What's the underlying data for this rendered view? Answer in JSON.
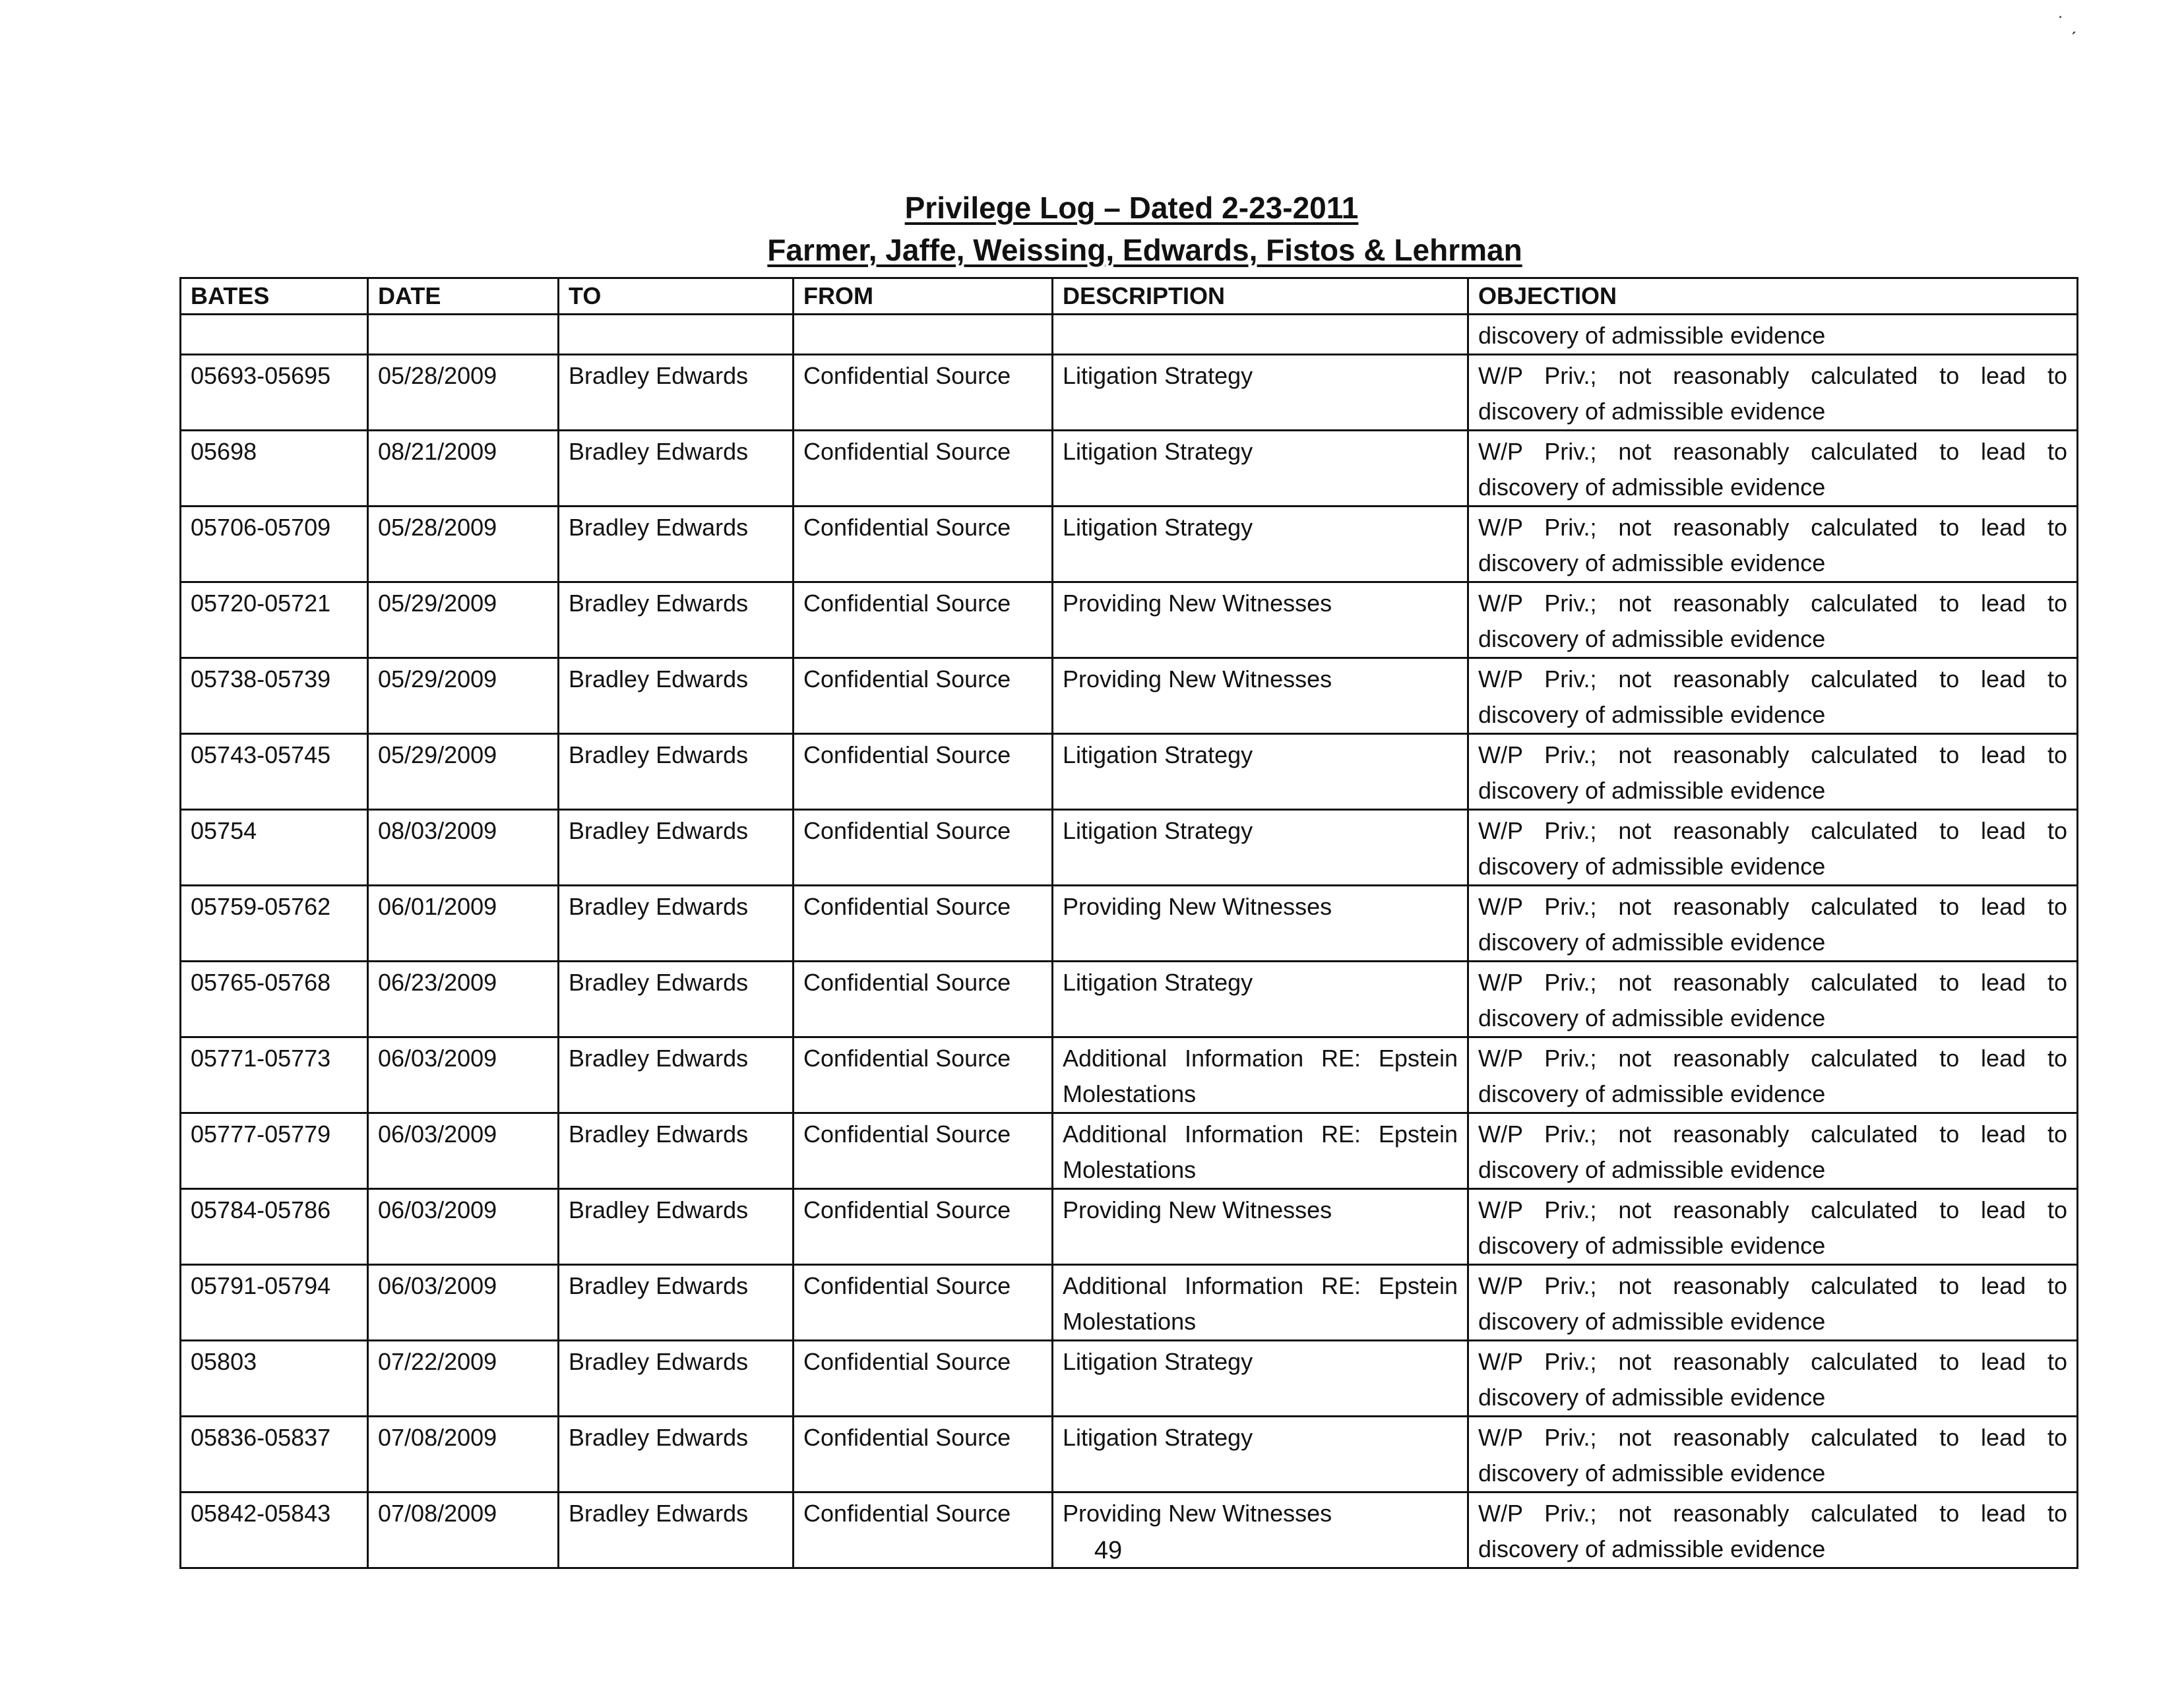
{
  "header": {
    "title": "Privilege Log – Dated 2-23-2011",
    "subtitle": "Farmer, Jaffe, Weissing, Edwards, Fistos & Lehrman"
  },
  "table": {
    "columns": [
      "BATES",
      "DATE",
      "TO",
      "FROM",
      "DESCRIPTION",
      "OBJECTION"
    ],
    "continuation": {
      "objection": "discovery of admissible evidence"
    },
    "rows": [
      {
        "bates": "05693-05695",
        "date": "05/28/2009",
        "to": "Bradley Edwards",
        "from": "Confidential Source",
        "description": "Litigation Strategy",
        "objection": "W/P Priv.; not reasonably calculated to lead to discovery of admissible evidence"
      },
      {
        "bates": "05698",
        "date": "08/21/2009",
        "to": "Bradley Edwards",
        "from": "Confidential Source",
        "description": "Litigation Strategy",
        "objection": "W/P Priv.; not reasonably calculated to lead to discovery of admissible evidence"
      },
      {
        "bates": "05706-05709",
        "date": "05/28/2009",
        "to": "Bradley Edwards",
        "from": "Confidential Source",
        "description": "Litigation Strategy",
        "objection": "W/P Priv.; not reasonably calculated to lead to discovery of admissible evidence"
      },
      {
        "bates": "05720-05721",
        "date": "05/29/2009",
        "to": "Bradley Edwards",
        "from": "Confidential Source",
        "description": "Providing New Witnesses",
        "objection": "W/P Priv.; not reasonably calculated to lead to discovery of admissible evidence"
      },
      {
        "bates": "05738-05739",
        "date": "05/29/2009",
        "to": "Bradley Edwards",
        "from": "Confidential Source",
        "description": "Providing New Witnesses",
        "objection": "W/P Priv.; not reasonably calculated to lead to discovery of admissible evidence"
      },
      {
        "bates": "05743-05745",
        "date": "05/29/2009",
        "to": "Bradley Edwards",
        "from": "Confidential Source",
        "description": "Litigation Strategy",
        "objection": "W/P Priv.; not reasonably calculated to lead to discovery of admissible evidence"
      },
      {
        "bates": "05754",
        "date": "08/03/2009",
        "to": "Bradley Edwards",
        "from": "Confidential Source",
        "description": "Litigation Strategy",
        "objection": "W/P Priv.; not reasonably calculated to lead to discovery of admissible evidence"
      },
      {
        "bates": "05759-05762",
        "date": "06/01/2009",
        "to": "Bradley Edwards",
        "from": "Confidential Source",
        "description": "Providing New Witnesses",
        "objection": "W/P Priv.; not reasonably calculated to lead to discovery of admissible evidence"
      },
      {
        "bates": "05765-05768",
        "date": "06/23/2009",
        "to": "Bradley Edwards",
        "from": "Confidential Source",
        "description": "Litigation Strategy",
        "objection": "W/P Priv.; not reasonably calculated to lead to discovery of admissible evidence"
      },
      {
        "bates": "05771-05773",
        "date": "06/03/2009",
        "to": "Bradley Edwards",
        "from": "Confidential Source",
        "description": "Additional Information RE: Epstein Molestations",
        "objection": "W/P Priv.; not reasonably calculated to lead to discovery of admissible evidence"
      },
      {
        "bates": "05777-05779",
        "date": "06/03/2009",
        "to": "Bradley Edwards",
        "from": "Confidential Source",
        "description": "Additional Information RE: Epstein Molestations",
        "objection": "W/P Priv.; not reasonably calculated to lead to discovery of admissible evidence"
      },
      {
        "bates": "05784-05786",
        "date": "06/03/2009",
        "to": "Bradley Edwards",
        "from": "Confidential Source",
        "description": "Providing New Witnesses",
        "objection": "W/P Priv.; not reasonably calculated to lead to discovery of admissible evidence"
      },
      {
        "bates": "05791-05794",
        "date": "06/03/2009",
        "to": "Bradley Edwards",
        "from": "Confidential Source",
        "description": "Additional Information RE: Epstein Molestations",
        "objection": "W/P Priv.; not reasonably calculated to lead to discovery of admissible evidence"
      },
      {
        "bates": "05803",
        "date": "07/22/2009",
        "to": "Bradley Edwards",
        "from": "Confidential Source",
        "description": "Litigation Strategy",
        "objection": "W/P Priv.; not reasonably calculated to lead to discovery of admissible evidence"
      },
      {
        "bates": "05836-05837",
        "date": "07/08/2009",
        "to": "Bradley Edwards",
        "from": "Confidential Source",
        "description": "Litigation Strategy",
        "objection": "W/P Priv.; not reasonably calculated to lead to discovery of admissible evidence"
      },
      {
        "bates": "05842-05843",
        "date": "07/08/2009",
        "to": "Bradley Edwards",
        "from": "Confidential Source",
        "description": "Providing New Witnesses",
        "objection": "W/P Priv.; not reasonably calculated to lead to discovery of admissible evidence"
      }
    ]
  },
  "footer": {
    "page_number": "49"
  }
}
